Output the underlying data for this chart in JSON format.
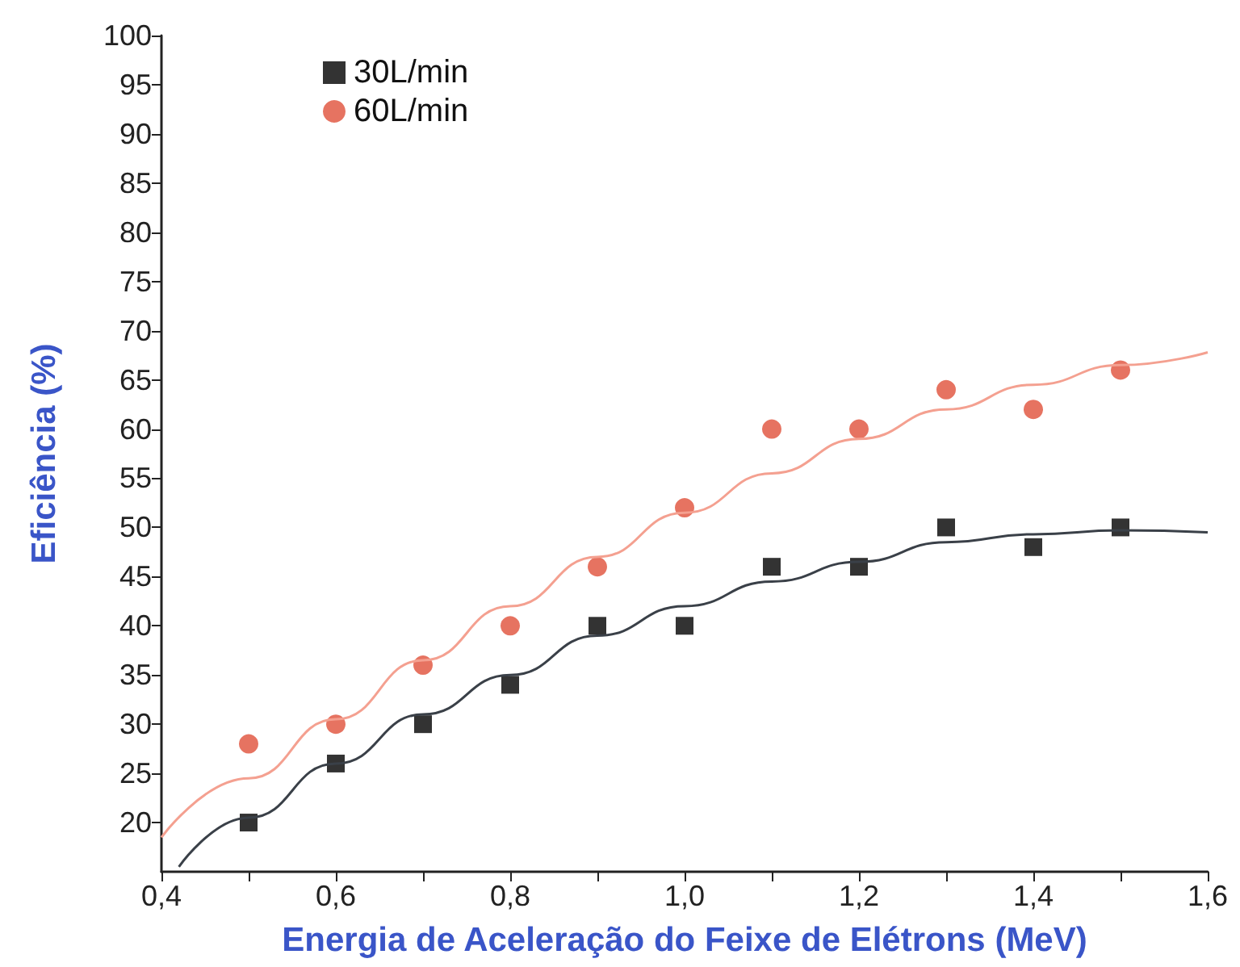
{
  "chart_data": {
    "type": "scatter",
    "xlabel": "Energia de Aceleração do Feixe de Elétrons (MeV)",
    "ylabel": "Eficiência (%)",
    "xlim": [
      0.4,
      1.6
    ],
    "ylim": [
      15,
      100
    ],
    "xticks": [
      {
        "value": 0.4,
        "label": "0,4"
      },
      {
        "value": 0.5,
        "label": null
      },
      {
        "value": 0.6,
        "label": "0,6"
      },
      {
        "value": 0.7,
        "label": null
      },
      {
        "value": 0.8,
        "label": "0,8"
      },
      {
        "value": 0.9,
        "label": null
      },
      {
        "value": 1.0,
        "label": "1,0"
      },
      {
        "value": 1.1,
        "label": null
      },
      {
        "value": 1.2,
        "label": "1,2"
      },
      {
        "value": 1.3,
        "label": null
      },
      {
        "value": 1.4,
        "label": "1,4"
      },
      {
        "value": 1.5,
        "label": null
      },
      {
        "value": 1.6,
        "label": "1,6"
      }
    ],
    "yticks": [
      20,
      25,
      30,
      35,
      40,
      45,
      50,
      55,
      60,
      65,
      70,
      75,
      80,
      85,
      90,
      95,
      100
    ],
    "grid": false,
    "legend": "top left",
    "series": [
      {
        "name": "30L/min",
        "color": "#000000",
        "marker": "square",
        "x": [
          0.5,
          0.6,
          0.7,
          0.8,
          0.9,
          1.0,
          1.1,
          1.2,
          1.3,
          1.4,
          1.5
        ],
        "values": [
          20,
          26,
          30,
          34,
          40,
          40,
          46,
          46,
          50,
          48,
          50
        ]
      },
      {
        "name": "60L/min",
        "color": "#e0503a",
        "marker": "circle",
        "x": [
          0.5,
          0.6,
          0.7,
          0.8,
          0.9,
          1.0,
          1.1,
          1.2,
          1.3,
          1.4,
          1.5
        ],
        "values": [
          28,
          30,
          36,
          40,
          46,
          52,
          60,
          60,
          64,
          62,
          66
        ]
      },
      {
        "type": "line",
        "color": "#3a4048",
        "marker": "none",
        "x": [
          0.42,
          0.5,
          0.6,
          0.7,
          0.8,
          0.9,
          1.0,
          1.1,
          1.2,
          1.3,
          1.4,
          1.5,
          1.6
        ],
        "values": [
          15.5,
          20.5,
          26,
          31,
          35,
          39,
          42,
          44.5,
          46.5,
          48.5,
          49.3,
          49.7,
          49.5
        ]
      },
      {
        "type": "line",
        "color": "#f4a090",
        "marker": "none",
        "x": [
          0.4,
          0.5,
          0.6,
          0.7,
          0.8,
          0.9,
          1.0,
          1.1,
          1.2,
          1.3,
          1.4,
          1.5,
          1.6
        ],
        "values": [
          18.5,
          24.5,
          30.5,
          36.5,
          42,
          47,
          51.5,
          55.5,
          59,
          62,
          64.5,
          66.5,
          67.8
        ]
      }
    ]
  }
}
